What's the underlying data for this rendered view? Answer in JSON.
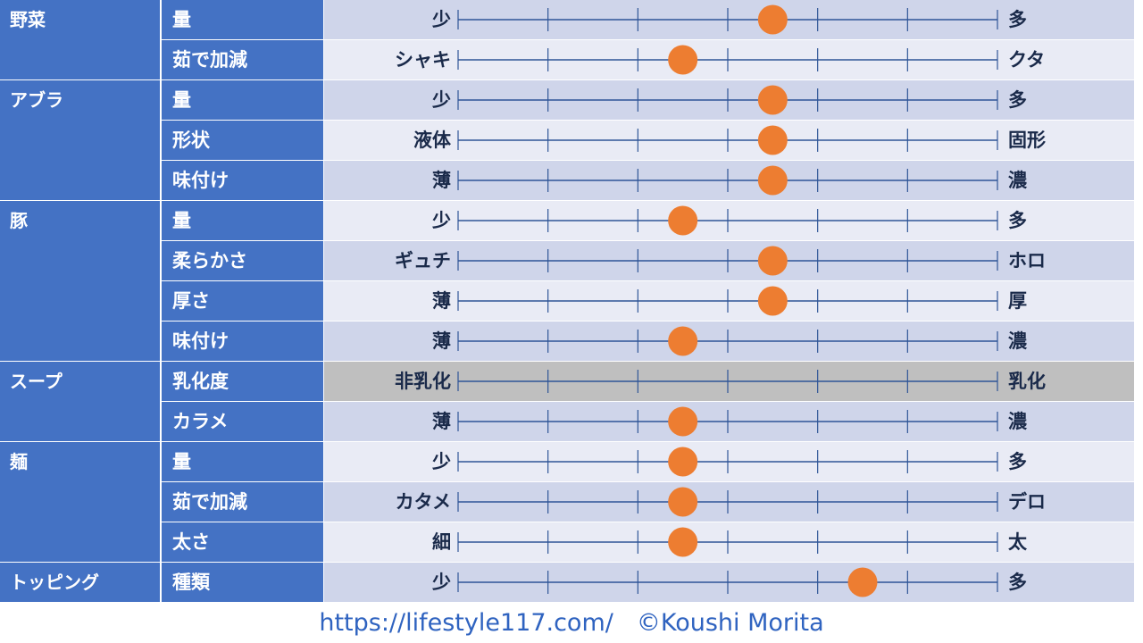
{
  "chart_data": {
    "type": "scatter",
    "scale_steps": 6,
    "colors": {
      "category_bg": "#4472c4",
      "row_bg_odd": "#cfd5ea",
      "row_bg_even": "#e9ebf5",
      "disabled_row_bg": "#bfbfbf",
      "line": "#2f5597",
      "marker": "#ed7d31"
    },
    "groups": [
      {
        "category": "野菜",
        "rows": [
          {
            "item": "量",
            "left": "少",
            "right": "多",
            "value": 3.5
          },
          {
            "item": "茹で加減",
            "left": "シャキ",
            "right": "クタ",
            "value": 2.5
          }
        ]
      },
      {
        "category": "アブラ",
        "rows": [
          {
            "item": "量",
            "left": "少",
            "right": "多",
            "value": 3.5
          },
          {
            "item": "形状",
            "left": "液体",
            "right": "固形",
            "value": 3.5
          },
          {
            "item": "味付け",
            "left": "薄",
            "right": "濃",
            "value": 3.5
          }
        ]
      },
      {
        "category": "豚",
        "rows": [
          {
            "item": "量",
            "left": "少",
            "right": "多",
            "value": 2.5
          },
          {
            "item": "柔らかさ",
            "left": "ギュチ",
            "right": "ホロ",
            "value": 3.5
          },
          {
            "item": "厚さ",
            "left": "薄",
            "right": "厚",
            "value": 3.5
          },
          {
            "item": "味付け",
            "left": "薄",
            "right": "濃",
            "value": 2.5
          }
        ]
      },
      {
        "category": "スープ",
        "rows": [
          {
            "item": "乳化度",
            "left": "非乳化",
            "right": "乳化",
            "value": null,
            "disabled": true
          },
          {
            "item": "カラメ",
            "left": "薄",
            "right": "濃",
            "value": 2.5
          }
        ]
      },
      {
        "category": "麺",
        "rows": [
          {
            "item": "量",
            "left": "少",
            "right": "多",
            "value": 2.5
          },
          {
            "item": "茹で加減",
            "left": "カタメ",
            "right": "デロ",
            "value": 2.5
          },
          {
            "item": "太さ",
            "left": "細",
            "right": "太",
            "value": 2.5
          }
        ]
      },
      {
        "category": "トッピング",
        "rows": [
          {
            "item": "種類",
            "left": "少",
            "right": "多",
            "value": 4.5
          }
        ]
      }
    ]
  },
  "footer": {
    "url": "https://lifestyle117.com/",
    "copyright": "©Koushi Morita"
  }
}
